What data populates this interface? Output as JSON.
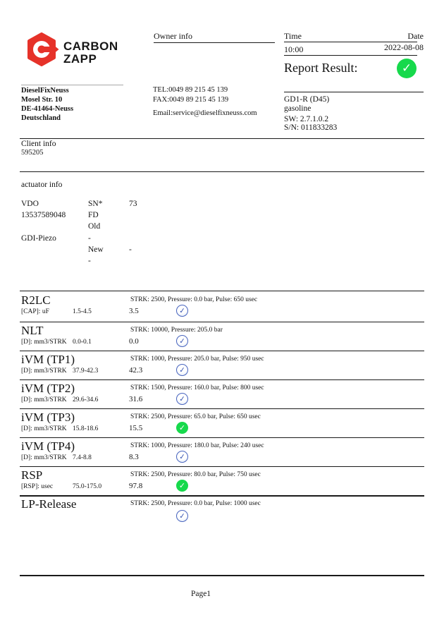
{
  "logo": {
    "brand_line1": "CARBON",
    "brand_line2": "ZAPP",
    "red": "#e63229"
  },
  "header": {
    "owner_info_label": "Owner info",
    "time_label": "Time",
    "time_value": "10:00",
    "date_label": "Date",
    "date_value": "2022-08-08",
    "report_result_label": "Report Result:",
    "report_result_status": "pass",
    "check_glyph": "✓"
  },
  "owner": {
    "name": "DieselFixNeuss",
    "street": "Mosel Str. 10",
    "city": "DE-41464-Neuss",
    "country": "Deutschland",
    "tel": "TEL:0049 89 215 45 139",
    "fax": "FAX:0049 89 215 45 139",
    "email": "Email:service@dieselfixneuss.com"
  },
  "machine": {
    "model": "GD1-R (D45)",
    "fuel": "gasoline",
    "software": "SW: 2.7.1.0.2",
    "serial": "S/N: 011833283"
  },
  "client": {
    "label": "Client info",
    "number": "595205"
  },
  "actuator": {
    "label": "actuator info",
    "brand": "VDO",
    "part_number": "13537589048",
    "type": "GDI-Piezo",
    "sn_label": "SN*",
    "sn_value": "73",
    "fd_label": "FD",
    "old_label": "Old",
    "old_value": "-",
    "new_label": "New",
    "new_value": "-",
    "trailing_dash": "-"
  },
  "tests": [
    {
      "name": "R2LC",
      "params": "STRK: 2500, Pressure: 0.0 bar, Pulse: 650 usec",
      "unit": "[CAP]: uF",
      "range": "1.5-4.5",
      "value": "3.5",
      "status": "blue-check"
    },
    {
      "name": "NLT",
      "params": "STRK: 10000, Pressure: 205.0 bar",
      "unit": "[D]: mm3/STRK",
      "range": "0.0-0.1",
      "value": "0.0",
      "status": "blue-check"
    },
    {
      "name": "iVM (TP1)",
      "params": "STRK: 1000, Pressure: 205.0 bar, Pulse: 950 usec",
      "unit": "[D]: mm3/STRK",
      "range": "37.9-42.3",
      "value": "42.3",
      "status": "blue-check"
    },
    {
      "name": "iVM (TP2)",
      "params": "STRK: 1500, Pressure: 160.0 bar, Pulse: 800 usec",
      "unit": "[D]: mm3/STRK",
      "range": "29.6-34.6",
      "value": "31.6",
      "status": "blue-check"
    },
    {
      "name": "iVM (TP3)",
      "params": "STRK: 2500, Pressure: 65.0 bar, Pulse: 650 usec",
      "unit": "[D]: mm3/STRK",
      "range": "15.8-18.6",
      "value": "15.5",
      "status": "green-check"
    },
    {
      "name": "iVM (TP4)",
      "params": "STRK: 1000, Pressure: 180.0 bar, Pulse: 240 usec",
      "unit": "[D]: mm3/STRK",
      "range": "7.4-8.8",
      "value": "8.3",
      "status": "blue-check"
    },
    {
      "name": "RSP",
      "params": "STRK: 2500, Pressure: 80.0 bar, Pulse: 750 usec",
      "unit": "[RSP]: usec",
      "range": "75.0-175.0",
      "value": "97.8",
      "status": "green-check"
    },
    {
      "name": "LP-Release",
      "params": "STRK: 2500, Pressure: 0.0 bar, Pulse: 1000 usec",
      "unit": "",
      "range": "",
      "value": "",
      "status": "blue-check"
    }
  ],
  "footer": {
    "page_label": "Page1"
  },
  "colors": {
    "pass_green": "#17d94c",
    "check_blue": "#4a66bf",
    "logo_red": "#e63229",
    "text": "#131313"
  }
}
